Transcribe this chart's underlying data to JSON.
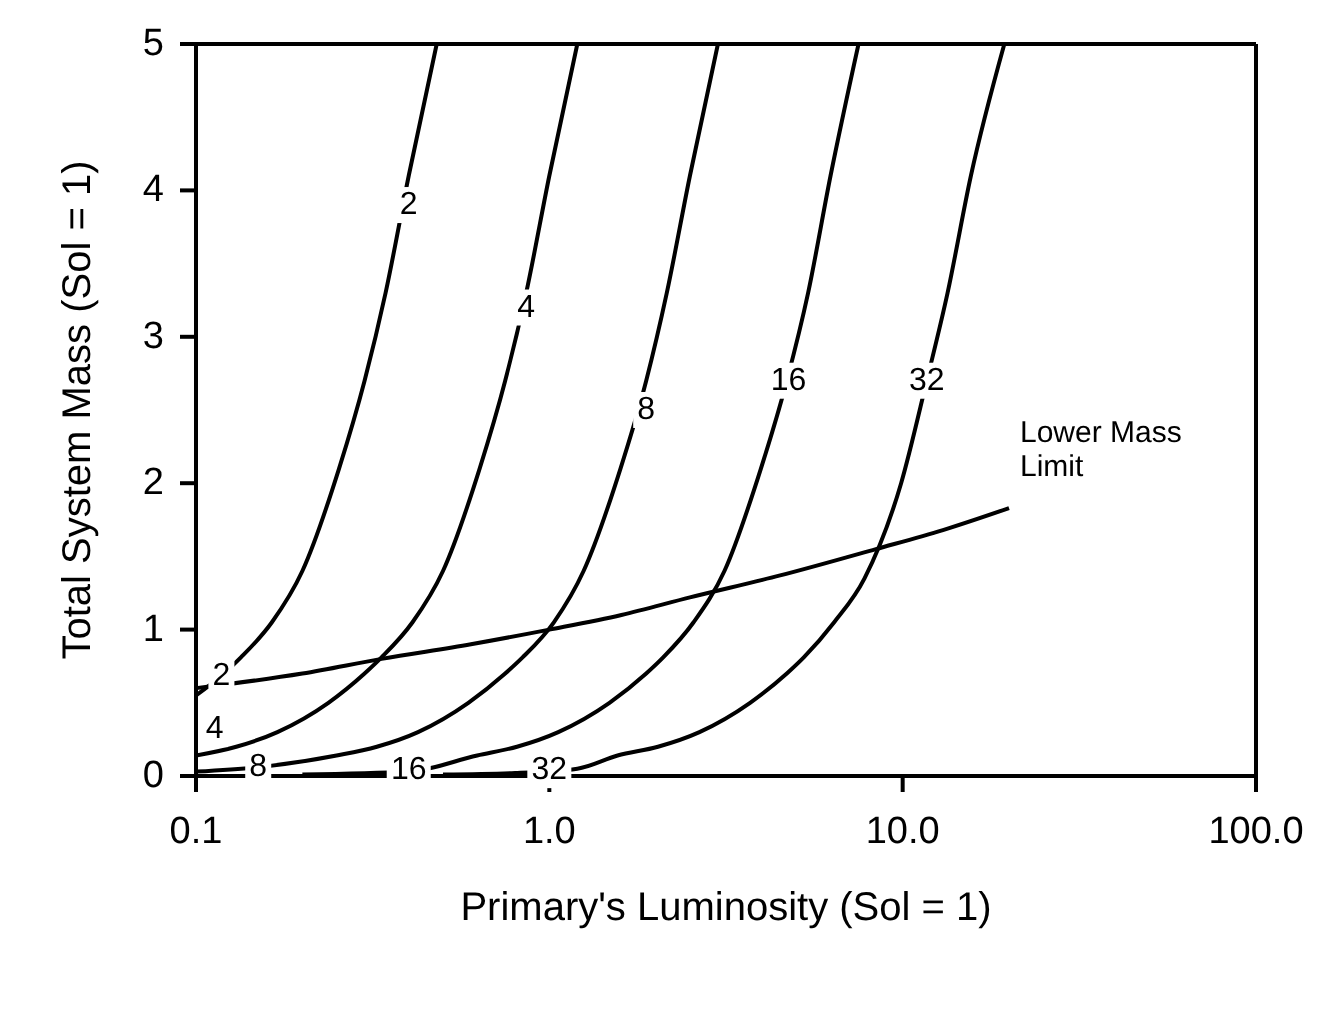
{
  "chart_data": {
    "type": "line",
    "xlabel": "Primary's Luminosity (Sol = 1)",
    "ylabel": "Total System Mass (Sol = 1)",
    "log": "x",
    "xlim": [
      0.1,
      100
    ],
    "ylim": [
      0,
      5
    ],
    "xticks": [
      {
        "value": 0.1,
        "label": "0.1"
      },
      {
        "value": 1,
        "label": "1.0"
      },
      {
        "value": 10,
        "label": "10.0"
      },
      {
        "value": 100,
        "label": "100.0"
      }
    ],
    "yticks": [
      0,
      1,
      2,
      3,
      4,
      5
    ],
    "grid": false,
    "marker": "none",
    "line_style": "solid",
    "series": [
      {
        "color": "#000000",
        "x": [
          0.1,
          0.12,
          0.134,
          0.164,
          0.2,
          0.254,
          0.3,
          0.344,
          0.4,
          0.48
        ],
        "values": [
          0.55,
          0.7,
          0.81,
          1.05,
          1.4,
          2.1,
          2.7,
          3.3,
          4.1,
          5.0
        ]
      },
      {
        "color": "#000000",
        "x": [
          0.1,
          0.13,
          0.17,
          0.237,
          0.3,
          0.335,
          0.41,
          0.5,
          0.635,
          0.75,
          0.86,
          1.0,
          1.2
        ],
        "values": [
          0.14,
          0.2,
          0.3,
          0.5,
          0.7,
          0.81,
          1.05,
          1.4,
          2.1,
          2.7,
          3.3,
          4.1,
          5.0
        ]
      },
      {
        "color": "#000000",
        "x": [
          0.1,
          0.15,
          0.25,
          0.325,
          0.425,
          0.59,
          0.75,
          0.84,
          1.03,
          1.25,
          1.59,
          1.88,
          2.15,
          2.5,
          3.0
        ],
        "values": [
          0.03,
          0.06,
          0.14,
          0.2,
          0.3,
          0.5,
          0.7,
          0.81,
          1.05,
          1.4,
          2.1,
          2.7,
          3.3,
          4.1,
          5.0
        ]
      },
      {
        "color": "#000000",
        "x": [
          0.2,
          0.4,
          0.625,
          0.81,
          1.06,
          1.48,
          1.88,
          2.1,
          2.56,
          3.13,
          3.97,
          4.7,
          5.4,
          6.25,
          7.5
        ],
        "values": [
          0.01,
          0.03,
          0.14,
          0.2,
          0.3,
          0.5,
          0.7,
          0.81,
          1.05,
          1.4,
          2.1,
          2.7,
          3.3,
          4.1,
          5.0
        ]
      },
      {
        "color": "#000000",
        "x": [
          0.5,
          0.8,
          1.2,
          1.56,
          2.03,
          2.66,
          3.7,
          4.7,
          5.25,
          6.4,
          7.8,
          9.9,
          11.7,
          13.4,
          15.6,
          19.4
        ],
        "values": [
          0.01,
          0.02,
          0.05,
          0.14,
          0.2,
          0.3,
          0.5,
          0.7,
          0.81,
          1.05,
          1.35,
          2.0,
          2.7,
          3.3,
          4.1,
          5.0
        ]
      },
      {
        "color": "#000000",
        "x": [
          0.1,
          0.2,
          0.335,
          0.6,
          1.0,
          1.6,
          2.5,
          4.5,
          8.4,
          13,
          20
        ],
        "values": [
          0.6,
          0.7,
          0.8,
          0.9,
          1.0,
          1.1,
          1.22,
          1.37,
          1.55,
          1.68,
          1.83
        ]
      }
    ],
    "annotations": [
      {
        "text": "2",
        "x": 0.4,
        "y": 3.9
      },
      {
        "text": "2",
        "x": 0.118,
        "y": 0.68
      },
      {
        "text": "4",
        "x": 0.86,
        "y": 3.2
      },
      {
        "text": "4",
        "x": 0.113,
        "y": 0.32
      },
      {
        "text": "8",
        "x": 1.88,
        "y": 2.5
      },
      {
        "text": "8",
        "x": 0.15,
        "y": 0.06
      },
      {
        "text": "16",
        "x": 4.75,
        "y": 2.7
      },
      {
        "text": "16",
        "x": 0.4,
        "y": 0.04
      },
      {
        "text": "32",
        "x": 11.7,
        "y": 2.7
      },
      {
        "text": "32",
        "x": 1.0,
        "y": 0.04
      },
      "Lower Mass Limit"
    ]
  }
}
